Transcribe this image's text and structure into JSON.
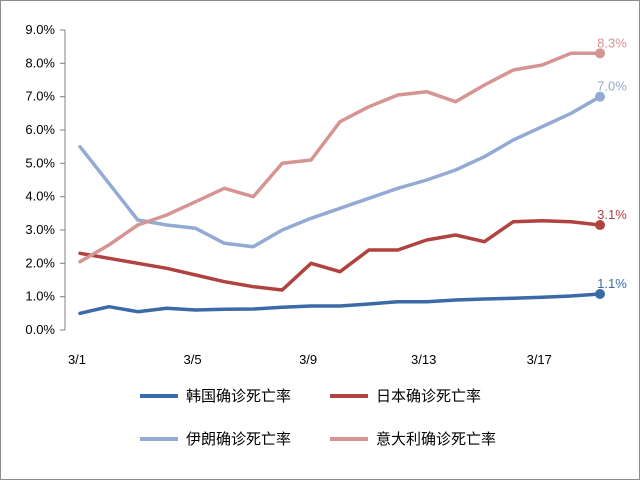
{
  "chart_data": {
    "type": "line",
    "title": "",
    "xlabel": "",
    "ylabel": "",
    "x": [
      "3/1",
      "3/2",
      "3/3",
      "3/4",
      "3/5",
      "3/6",
      "3/7",
      "3/8",
      "3/9",
      "3/10",
      "3/11",
      "3/12",
      "3/13",
      "3/14",
      "3/15",
      "3/16",
      "3/17",
      "3/18",
      "3/19"
    ],
    "x_tick_labels": [
      "3/1",
      "3/5",
      "3/9",
      "3/13",
      "3/17"
    ],
    "y_tick_labels": [
      "0.0%",
      "1.0%",
      "2.0%",
      "3.0%",
      "4.0%",
      "5.0%",
      "6.0%",
      "7.0%",
      "8.0%",
      "9.0%"
    ],
    "ylim": [
      0,
      9
    ],
    "grid": false,
    "legend_position": "bottom",
    "series": [
      {
        "name": "韩国确诊死亡率",
        "color": "#3a6aa8",
        "end_label": "1.1%",
        "values": [
          0.5,
          0.7,
          0.55,
          0.65,
          0.6,
          0.62,
          0.63,
          0.68,
          0.72,
          0.72,
          0.78,
          0.85,
          0.85,
          0.9,
          0.93,
          0.95,
          0.98,
          1.02,
          1.08
        ]
      },
      {
        "name": "日本确诊死亡率",
        "color": "#b04240",
        "end_label": "3.1%",
        "values": [
          2.3,
          2.15,
          2.0,
          1.85,
          1.65,
          1.45,
          1.3,
          1.2,
          2.0,
          1.75,
          2.4,
          2.4,
          2.7,
          2.85,
          2.65,
          3.25,
          3.28,
          3.25,
          3.15
        ]
      },
      {
        "name": "伊朗确诊死亡率",
        "color": "#92aad4",
        "end_label": "7.0%",
        "values": [
          5.5,
          4.4,
          3.3,
          3.15,
          3.05,
          2.6,
          2.5,
          3.0,
          3.35,
          3.65,
          3.95,
          4.25,
          4.5,
          4.8,
          5.2,
          5.7,
          6.1,
          6.5,
          7.0
        ]
      },
      {
        "name": "意大利确诊死亡率",
        "color": "#d59593",
        "end_label": "8.3%",
        "values": [
          2.05,
          2.55,
          3.15,
          3.45,
          3.85,
          4.25,
          4.0,
          5.0,
          5.1,
          6.25,
          6.7,
          7.05,
          7.15,
          6.85,
          7.35,
          7.8,
          7.95,
          8.3,
          8.3
        ]
      }
    ]
  }
}
